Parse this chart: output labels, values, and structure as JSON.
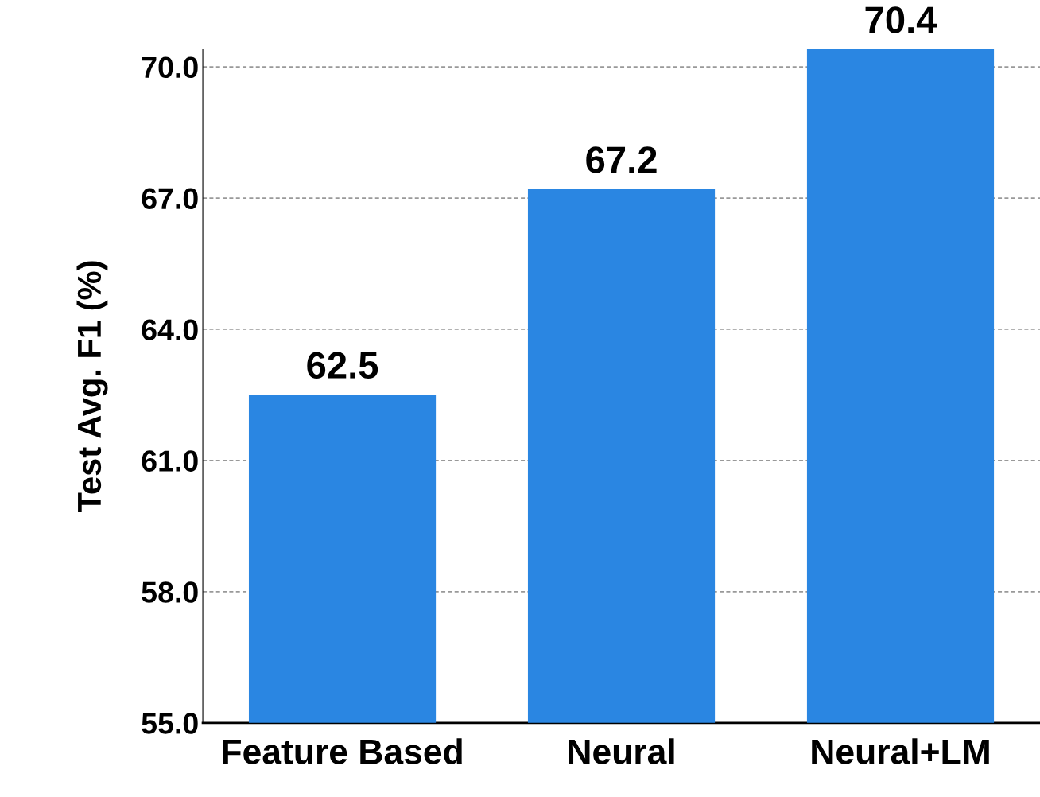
{
  "chart_data": {
    "type": "bar",
    "ylabel": "Test Avg. F1 (%)",
    "categories": [
      "Feature Based",
      "Neural",
      "Neural+LM"
    ],
    "values": [
      62.5,
      67.2,
      70.4
    ],
    "color": "#2a86e2",
    "value_labels": [
      "62.5",
      "67.2",
      "70.4"
    ],
    "ylim": [
      55,
      70.4
    ],
    "yticks": [
      {
        "value": 55,
        "label": "55.0"
      },
      {
        "value": 58,
        "label": "58.0"
      },
      {
        "value": 61,
        "label": "61.0"
      },
      {
        "value": 64,
        "label": "64.0"
      },
      {
        "value": 67,
        "label": "67.0"
      },
      {
        "value": 70,
        "label": "70.0"
      }
    ],
    "grid": "y"
  }
}
